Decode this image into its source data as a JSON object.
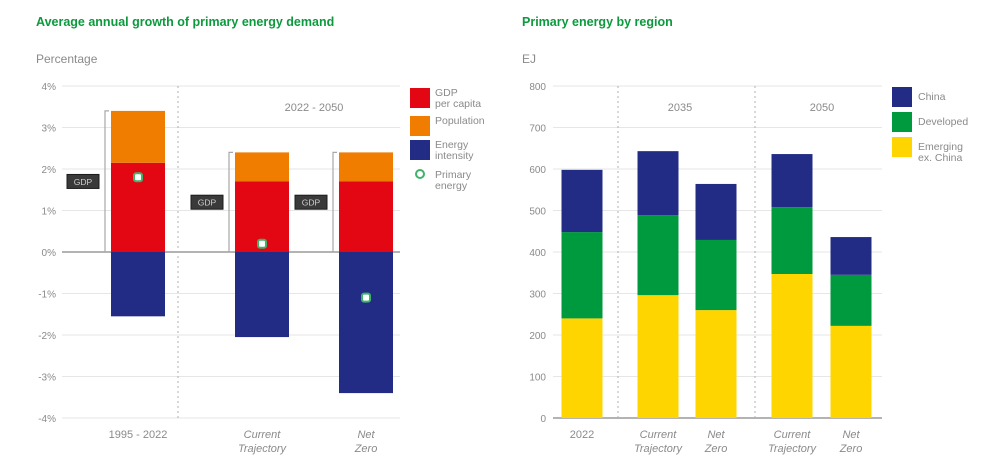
{
  "chart_data": [
    {
      "type": "bar",
      "stacked": true,
      "title": "Average annual growth of primary energy demand",
      "ylabel": "Percentage",
      "ylim": [
        -4,
        4
      ],
      "yticks": [
        4,
        3,
        2,
        1,
        0,
        -1,
        -2,
        -3,
        -4
      ],
      "ytick_labels": [
        "4%",
        "3%",
        "2%",
        "1%",
        "0%",
        "-1%",
        "-2%",
        "-3%",
        "-4%"
      ],
      "grid": true,
      "section_label": "2022 - 2050",
      "categories": [
        "1995 - 2022",
        "Current Trajectory",
        "Net Zero"
      ],
      "category_lines": [
        [
          "1995 - 2022"
        ],
        [
          "Current",
          "Trajectory"
        ],
        [
          "Net",
          "Zero"
        ]
      ],
      "bracket_label": "GDP",
      "series": [
        {
          "name": "GDP per capita",
          "legend_lines": [
            "GDP",
            "per capita"
          ],
          "color": "#e30613",
          "values": [
            2.15,
            1.7,
            1.7
          ]
        },
        {
          "name": "Population",
          "legend_lines": [
            "Population"
          ],
          "color": "#f07c00",
          "values": [
            1.25,
            0.7,
            0.7
          ]
        },
        {
          "name": "Energy intensity",
          "legend_lines": [
            "Energy",
            "intensity"
          ],
          "color": "#232c84",
          "values": [
            -1.55,
            -2.05,
            -3.4
          ]
        }
      ],
      "markers": {
        "name": "Primary energy",
        "legend_lines": [
          "Primary",
          "energy"
        ],
        "color": "#3fb36a",
        "values": [
          1.8,
          0.2,
          -1.1
        ]
      },
      "legend": "right"
    },
    {
      "type": "bar",
      "stacked": true,
      "title": "Primary energy by region",
      "ylabel": "EJ",
      "ylim": [
        0,
        800
      ],
      "yticks": [
        800,
        700,
        600,
        500,
        400,
        300,
        200,
        100,
        0
      ],
      "ytick_labels": [
        "800",
        "700",
        "600",
        "500",
        "400",
        "300",
        "200",
        "100",
        "0"
      ],
      "grid": true,
      "section_labels": [
        "2035",
        "2050"
      ],
      "categories": [
        "2022",
        "Current Trajectory",
        "Net Zero",
        "Current Trajectory",
        "Net Zero"
      ],
      "category_lines": [
        [
          "2022"
        ],
        [
          "Current",
          "Trajectory"
        ],
        [
          "Net",
          "Zero"
        ],
        [
          "Current",
          "Trajectory"
        ],
        [
          "Net",
          "Zero"
        ]
      ],
      "series": [
        {
          "name": "Emerging ex. China",
          "legend_lines": [
            "Emerging",
            "ex. China"
          ],
          "color": "#ffd500",
          "values": [
            240,
            296,
            260,
            347,
            222
          ]
        },
        {
          "name": "Developed",
          "legend_lines": [
            "Developed"
          ],
          "color": "#009a3e",
          "values": [
            208,
            193,
            169,
            161,
            123
          ]
        },
        {
          "name": "China",
          "legend_lines": [
            "China"
          ],
          "color": "#232c84",
          "values": [
            150,
            154,
            135,
            128,
            91
          ]
        }
      ],
      "legend": "right"
    }
  ]
}
